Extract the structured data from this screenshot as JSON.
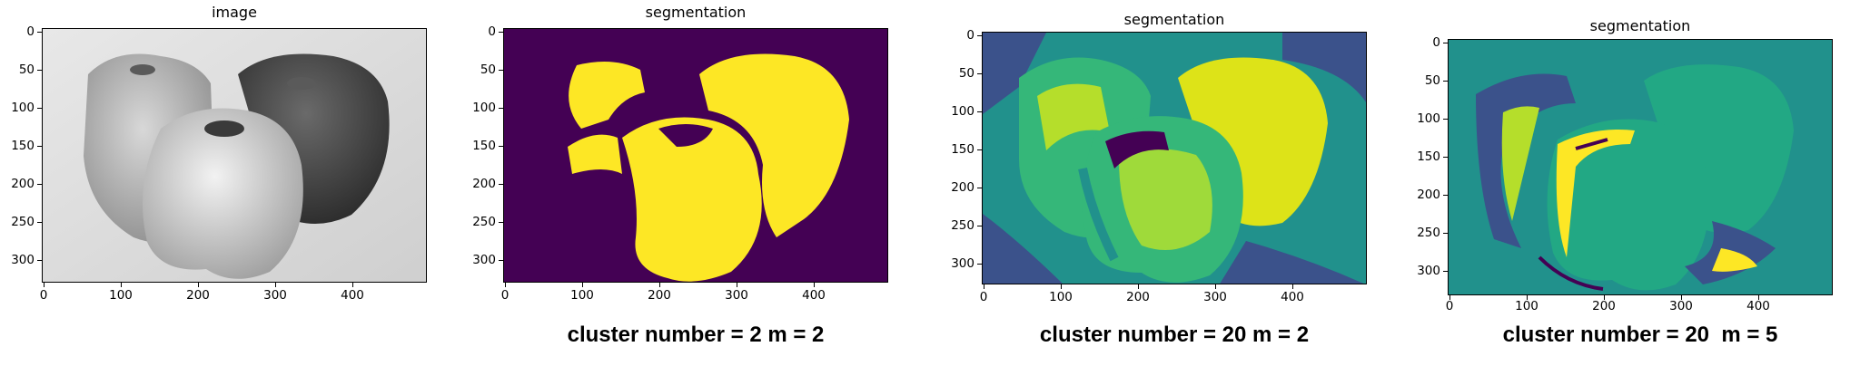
{
  "panels": [
    {
      "title": "image",
      "caption": ""
    },
    {
      "title": "segmentation",
      "caption": "cluster number = 2 m = 2"
    },
    {
      "title": "segmentation",
      "caption": "cluster number = 20 m = 2"
    },
    {
      "title": "segmentation",
      "caption": "cluster number = 20  m = 5"
    }
  ],
  "axes": {
    "y_ticks": [
      "0",
      "50",
      "100",
      "150",
      "200",
      "250",
      "300"
    ],
    "x_ticks": [
      "0",
      "100",
      "200",
      "300",
      "400"
    ]
  },
  "colors": {
    "viridis_purple": "#440154",
    "viridis_yellow": "#fde725",
    "viridis_teal": "#21918c",
    "viridis_green": "#35b779",
    "viridis_lime": "#b5de2b",
    "viridis_blue": "#3b528b"
  },
  "image_content": "three bell peppers"
}
